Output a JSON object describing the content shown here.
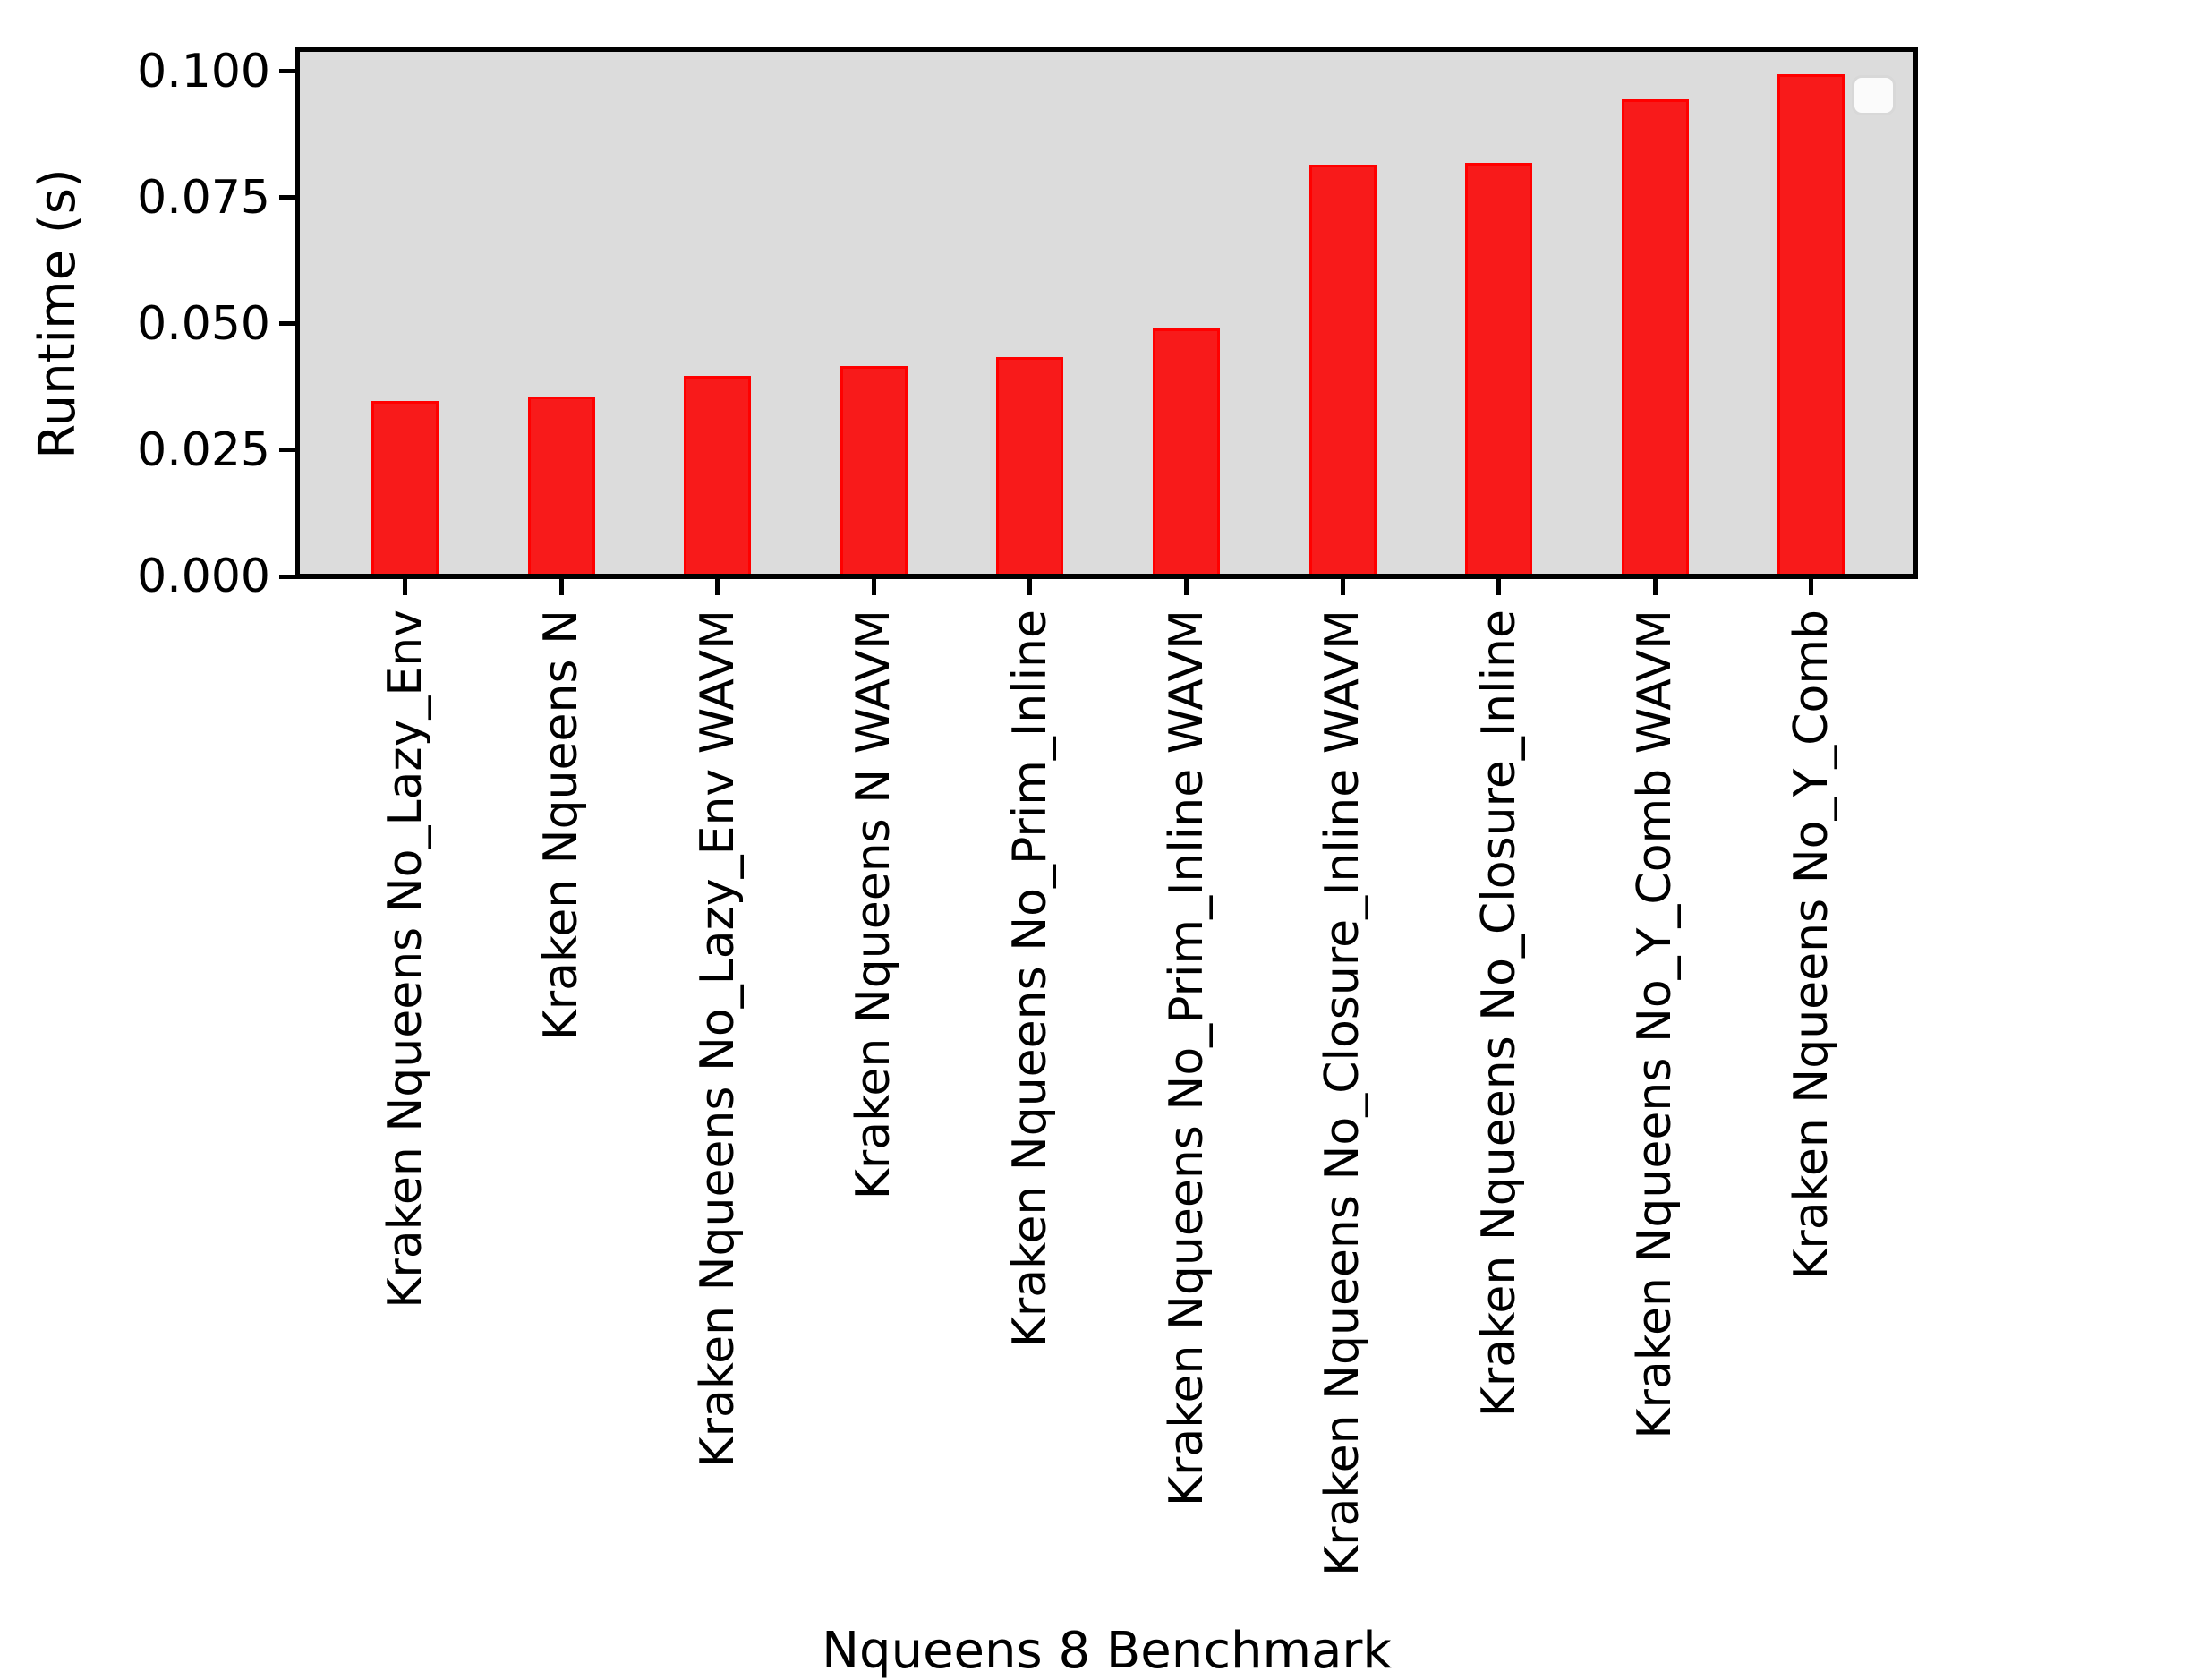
{
  "chart_data": {
    "type": "bar",
    "title": "",
    "xlabel": "Nqueens 8 Benchmark",
    "ylabel": "Runtime (s)",
    "categories": [
      "Kraken Nqueens No_Lazy_Env",
      "Kraken Nqueens N",
      "Kraken Nqueens No_Lazy_Env WAVM",
      "Kraken Nqueens N WAVM",
      "Kraken Nqueens No_Prim_Inline",
      "Kraken Nqueens No_Prim_Inline WAVM",
      "Kraken Nqueens No_Closure_Inline WAVM",
      "Kraken Nqueens No_Closure_Inline",
      "Kraken Nqueens No_Y_Comb WAVM",
      "Kraken Nqueens No_Y_Comb"
    ],
    "values": [
      0.0347,
      0.0356,
      0.0397,
      0.0416,
      0.0434,
      0.0492,
      0.0816,
      0.0819,
      0.0945,
      0.0994
    ],
    "yticks": [
      "0.000",
      "0.025",
      "0.050",
      "0.075",
      "0.100"
    ],
    "ytick_values": [
      0.0,
      0.025,
      0.05,
      0.075,
      0.1
    ],
    "ylim": [
      0,
      0.10425
    ],
    "grid": false,
    "legend": {
      "visible": true,
      "entries": []
    },
    "colors": {
      "bar_fill": "#f81a1a",
      "bar_edge": "#ff0000",
      "plot_background": "#dcdcdc",
      "figure_background": "#ffffff",
      "axis": "#000000"
    }
  }
}
